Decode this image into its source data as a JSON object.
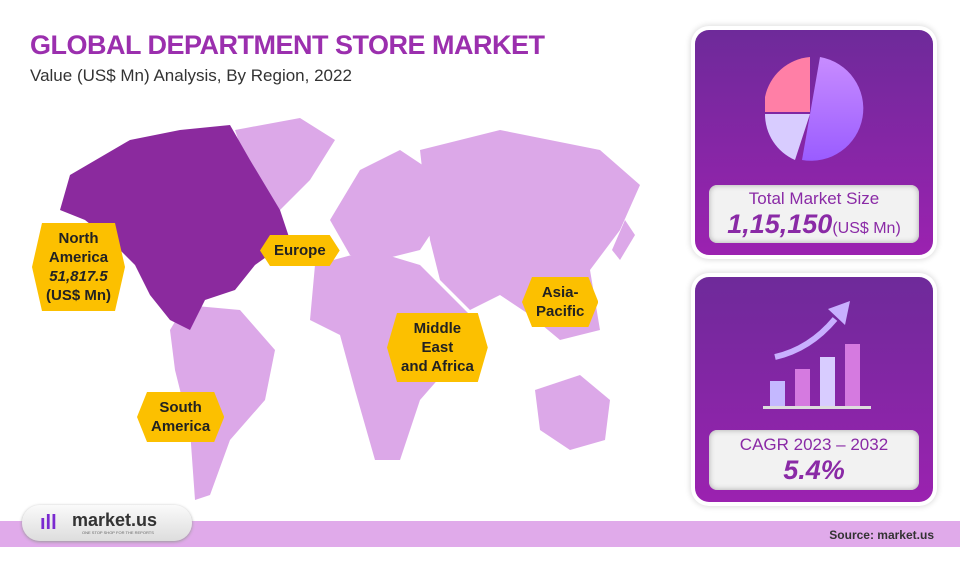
{
  "header": {
    "title": "GLOBAL DEPARTMENT STORE MARKET",
    "subtitle": "Value (US$ Mn) Analysis, By Region, 2022"
  },
  "map": {
    "highlight_color": "#8b2a9e",
    "base_color": "#dca8e8",
    "label_color": "#fcc000",
    "regions": {
      "north_america": {
        "line1": "North",
        "line2": "America",
        "value": "51,817.5",
        "unit": "(US$ Mn)"
      },
      "europe": {
        "label": "Europe"
      },
      "asia_pacific": {
        "line1": "Asia-",
        "line2": "Pacific"
      },
      "mea": {
        "line1": "Middle",
        "line2": "East",
        "line3": "and Africa"
      },
      "south_america": {
        "line1": "South",
        "line2": "America"
      }
    }
  },
  "cards": {
    "market": {
      "label": "Total Market Size",
      "value": "1,15,150",
      "unit": "(US$ Mn)",
      "icon": "pie-chart-icon"
    },
    "cagr": {
      "label": "CAGR 2023 – 2032",
      "value": "5.4%",
      "icon": "growth-bar-chart-icon"
    }
  },
  "footer": {
    "logo_text": "market.us",
    "logo_tagline": "ONE STOP SHOP FOR THE REPORTS",
    "source": "Source: market.us"
  }
}
